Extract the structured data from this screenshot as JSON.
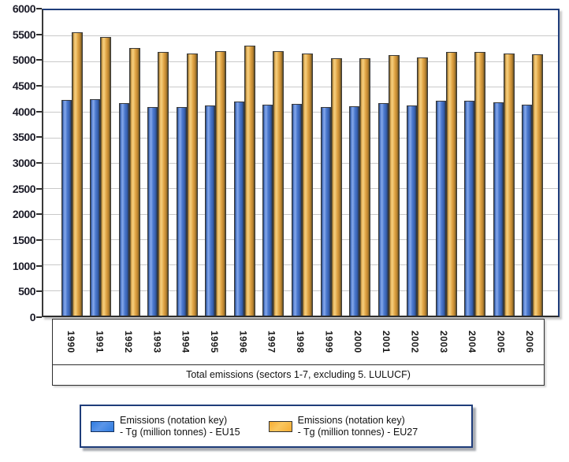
{
  "chart_data": {
    "type": "bar",
    "title": "",
    "categories": [
      "1990",
      "1991",
      "1992",
      "1993",
      "1994",
      "1995",
      "1996",
      "1997",
      "1998",
      "1999",
      "2000",
      "2001",
      "2002",
      "2003",
      "2004",
      "2005",
      "2006"
    ],
    "series": [
      {
        "key": "eu15",
        "name": "Emissions (notation key) - Tg (million tonnes) - EU15",
        "legend_lines": [
          "Emissions (notation key)",
          "- Tg (million tonnes) - EU15"
        ],
        "color": "#4a78ce",
        "values": [
          4230,
          4255,
          4170,
          4095,
          4105,
          4125,
          4210,
          4140,
          4155,
          4100,
          4110,
          4175,
          4125,
          4215,
          4225,
          4190,
          4150
        ]
      },
      {
        "key": "eu27",
        "name": "Emissions (notation key) - Tg (million tonnes) - EU27",
        "legend_lines": [
          "Emissions (notation key)",
          "- Tg (million tonnes) - EU27"
        ],
        "color": "#e0a344",
        "values": [
          5560,
          5475,
          5260,
          5175,
          5155,
          5200,
          5300,
          5195,
          5155,
          5050,
          5050,
          5115,
          5075,
          5175,
          5180,
          5155,
          5140
        ]
      }
    ],
    "xlabel_box": "Total emissions (sectors 1-7, excluding 5. LULUCF)",
    "ylabel": "",
    "ylim": [
      0,
      6000
    ],
    "ytick_step": 500,
    "grid": true,
    "legend_position": "bottom",
    "colors": {
      "frame_border": "#1f3d7a",
      "axis_line": "#2e2e2e",
      "gridline": "#c9c9c9",
      "bar_eu15_mid": "#4a78ce",
      "bar_eu15_highlight": "#86a8ea",
      "bar_eu27_mid": "#e0a344",
      "bar_eu27_highlight": "#f4cf7e",
      "legend_swatch_eu15": "#2f7be0",
      "legend_swatch_eu27": "#f6ac33",
      "background": "#ffffff"
    }
  }
}
